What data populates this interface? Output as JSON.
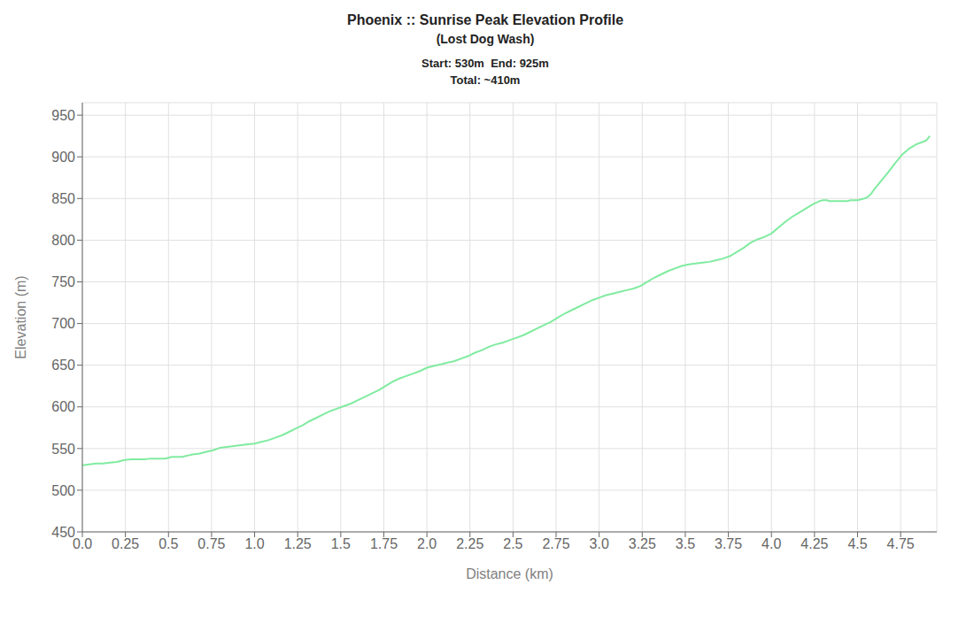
{
  "chart_data": {
    "type": "line",
    "title": "Phoenix :: Sunrise Peak Elevation Profile",
    "subtitle": "(Lost Dog Wash)",
    "annotations": [
      "Start: 530m  End: 925m",
      "Total: ~410m"
    ],
    "x_label": "Distance (km)",
    "y_label": "Elevation (m)",
    "grid": true,
    "xlim": [
      0.0,
      4.96
    ],
    "ylim": [
      450,
      965
    ],
    "xticks": [
      {
        "value": 0,
        "label": "0.0"
      },
      0.25,
      0.5,
      0.75,
      {
        "value": 1,
        "label": "1.0"
      },
      1.25,
      1.5,
      1.75,
      {
        "value": 2,
        "label": "2.0"
      },
      2.25,
      2.5,
      2.75,
      {
        "value": 3,
        "label": "3.0"
      },
      3.25,
      3.5,
      3.75,
      {
        "value": 4,
        "label": "4.0"
      },
      4.25,
      4.5,
      4.75
    ],
    "yticks": [
      450,
      500,
      550,
      600,
      650,
      700,
      750,
      800,
      850,
      900,
      950
    ],
    "x": [
      0.0,
      0.04,
      0.08,
      0.12,
      0.16,
      0.2,
      0.24,
      0.28,
      0.32,
      0.36,
      0.4,
      0.44,
      0.48,
      0.5,
      0.52,
      0.54,
      0.56,
      0.58,
      0.6,
      0.62,
      0.64,
      0.68,
      0.72,
      0.76,
      0.8,
      0.84,
      0.88,
      0.92,
      0.96,
      1.0,
      1.04,
      1.08,
      1.12,
      1.16,
      1.2,
      1.24,
      1.28,
      1.32,
      1.36,
      1.4,
      1.44,
      1.48,
      1.52,
      1.56,
      1.6,
      1.64,
      1.68,
      1.72,
      1.76,
      1.8,
      1.84,
      1.88,
      1.92,
      1.96,
      2.0,
      2.04,
      2.08,
      2.12,
      2.16,
      2.2,
      2.24,
      2.28,
      2.32,
      2.36,
      2.4,
      2.44,
      2.48,
      2.52,
      2.56,
      2.6,
      2.64,
      2.68,
      2.72,
      2.76,
      2.8,
      2.84,
      2.88,
      2.92,
      2.96,
      3.0,
      3.04,
      3.08,
      3.12,
      3.16,
      3.2,
      3.24,
      3.28,
      3.32,
      3.36,
      3.4,
      3.44,
      3.48,
      3.52,
      3.56,
      3.6,
      3.64,
      3.68,
      3.72,
      3.76,
      3.8,
      3.84,
      3.88,
      3.92,
      3.96,
      4.0,
      4.04,
      4.08,
      4.12,
      4.16,
      4.2,
      4.24,
      4.28,
      4.3,
      4.32,
      4.34,
      4.36,
      4.38,
      4.4,
      4.42,
      4.44,
      4.46,
      4.48,
      4.5,
      4.52,
      4.54,
      4.56,
      4.58,
      4.6,
      4.64,
      4.68,
      4.72,
      4.76,
      4.8,
      4.84,
      4.88,
      4.9,
      4.92
    ],
    "series": [
      {
        "name": "Elevation (m)",
        "color": "#80EBA0",
        "values": [
          530,
          531,
          532,
          532,
          533,
          534,
          536,
          537,
          537,
          537,
          538,
          538,
          538,
          539,
          540,
          540,
          540,
          540,
          541,
          542,
          543,
          544,
          546,
          548,
          551,
          552,
          553,
          554,
          555,
          556,
          558,
          560,
          563,
          566,
          570,
          574,
          578,
          583,
          587,
          591,
          595,
          598,
          601,
          604,
          608,
          612,
          616,
          620,
          625,
          630,
          634,
          637,
          640,
          643,
          647,
          649,
          651,
          653,
          655,
          658,
          661,
          665,
          668,
          672,
          675,
          677,
          680,
          683,
          686,
          690,
          694,
          698,
          702,
          707,
          712,
          716,
          720,
          724,
          728,
          731,
          734,
          736,
          738,
          740,
          742,
          745,
          750,
          755,
          759,
          763,
          766,
          769,
          771,
          772,
          773,
          774,
          776,
          778,
          781,
          786,
          791,
          797,
          801,
          804,
          808,
          815,
          822,
          828,
          833,
          838,
          843,
          847,
          848,
          848,
          847,
          847,
          847,
          847,
          847,
          847,
          848,
          848,
          848,
          849,
          850,
          852,
          856,
          862,
          872,
          882,
          893,
          903,
          910,
          915,
          918,
          920,
          925
        ]
      }
    ]
  }
}
